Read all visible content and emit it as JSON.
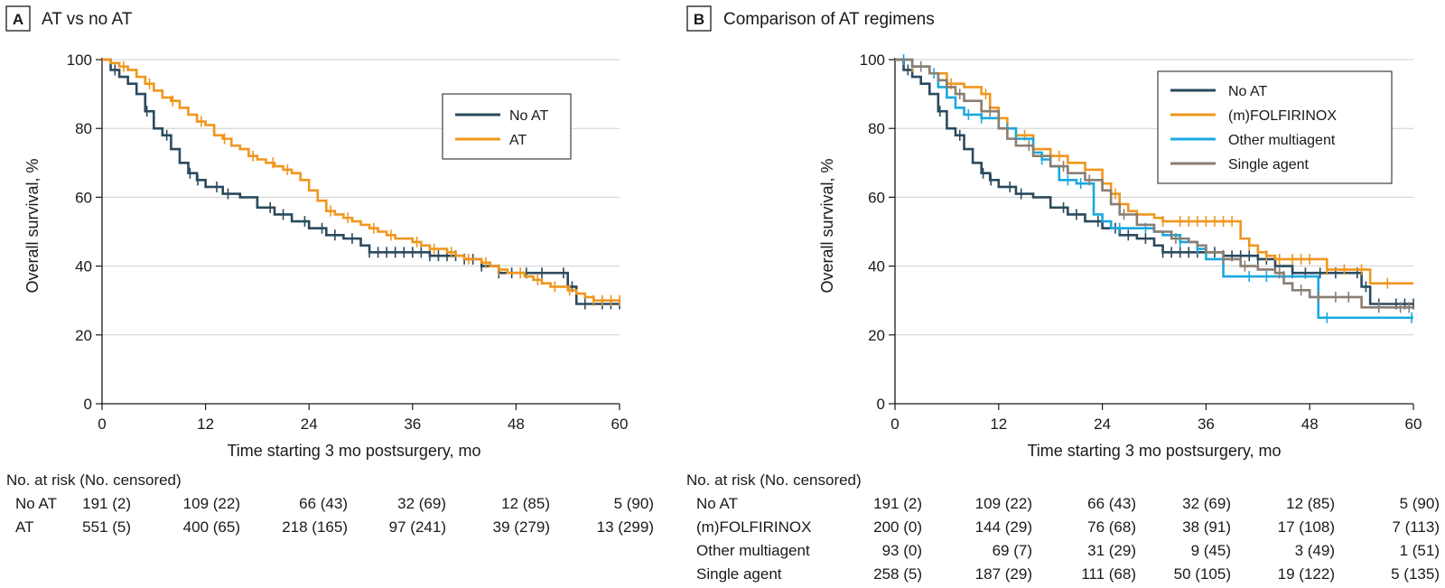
{
  "chart_data": [
    {
      "type": "line",
      "panel_letter": "A",
      "title": "AT vs no AT",
      "xlabel": "Time starting 3 mo postsurgery, mo",
      "ylabel": "Overall survival, %",
      "xlim": [
        0,
        60
      ],
      "ylim": [
        0,
        100
      ],
      "xticks": [
        0,
        12,
        24,
        36,
        48,
        60
      ],
      "yticks": [
        0,
        20,
        40,
        60,
        80,
        100
      ],
      "grid": "horizontal",
      "legend_position": "top-right",
      "series": [
        {
          "name": "No AT",
          "color": "#2b4a5e",
          "x": [
            0,
            1,
            2,
            3,
            4,
            5,
            6,
            7,
            8,
            9,
            10,
            11,
            12,
            14,
            16,
            18,
            20,
            22,
            24,
            26,
            28,
            30,
            31,
            33,
            36,
            38,
            42,
            44,
            46,
            48,
            50,
            53,
            54,
            55,
            60
          ],
          "y": [
            100,
            97,
            95,
            93,
            90,
            85,
            80,
            78,
            74,
            70,
            67,
            65,
            63,
            61,
            60,
            57,
            55,
            53,
            51,
            49,
            48,
            46,
            44,
            44,
            44,
            43,
            42,
            40,
            38,
            38,
            38,
            38,
            34,
            29,
            29
          ],
          "censor_x": [
            1.5,
            5.2,
            7.5,
            10.2,
            11.1,
            13.3,
            14.6,
            19.5,
            21,
            23.5,
            25.5,
            27,
            29,
            31,
            32,
            33,
            34,
            35,
            36,
            37,
            38,
            39,
            40,
            41,
            42,
            43,
            44,
            46,
            47.5,
            49.2,
            51,
            53.5,
            54.5,
            56,
            58,
            59,
            60
          ]
        },
        {
          "name": "AT",
          "color": "#f0961d",
          "x": [
            0,
            1,
            2,
            3,
            4,
            5,
            6,
            7,
            8,
            9,
            10,
            11,
            12,
            13,
            14,
            15,
            16,
            17,
            18,
            19,
            20,
            21,
            22,
            23,
            24,
            25,
            26,
            27,
            28,
            29,
            30,
            31,
            32,
            33,
            34,
            35,
            36,
            37,
            38,
            39,
            40,
            41,
            42,
            43,
            44,
            45,
            46,
            47,
            48,
            49,
            50,
            51,
            52,
            53,
            54,
            55,
            56,
            57,
            58,
            60
          ],
          "y": [
            100,
            99,
            98,
            97,
            95,
            93,
            91,
            89,
            88,
            86,
            84,
            82,
            81,
            78,
            77,
            75,
            74,
            72,
            71,
            70,
            69,
            68,
            67,
            65,
            62,
            59,
            56,
            55,
            54,
            53,
            52,
            51,
            50,
            49,
            48,
            48,
            47,
            46,
            45,
            45,
            44,
            43,
            42,
            42,
            41,
            40,
            39,
            38,
            38,
            37,
            36,
            35,
            34,
            34,
            33,
            32,
            31,
            30,
            30,
            30
          ],
          "censor_x": [
            2.5,
            5.5,
            8.2,
            11.5,
            14.2,
            17.5,
            19.8,
            21.5,
            26.5,
            28.5,
            31.5,
            33.5,
            36.5,
            38.5,
            40.5,
            42.5,
            44.5,
            46,
            48.5,
            50.5,
            52.5,
            54.2,
            57,
            58,
            59,
            60
          ]
        }
      ],
      "risk_table": {
        "header": "No. at risk (No. censored)",
        "rows": [
          {
            "label": "No AT",
            "values": [
              "191 (2)",
              "109 (22)",
              "66 (43)",
              "32 (69)",
              "12 (85)",
              "5 (90)"
            ]
          },
          {
            "label": "AT",
            "values": [
              "551 (5)",
              "400 (65)",
              "218 (165)",
              "97 (241)",
              "39 (279)",
              "13 (299)"
            ]
          }
        ]
      }
    },
    {
      "type": "line",
      "panel_letter": "B",
      "title": "Comparison of AT regimens",
      "xlabel": "Time starting 3 mo postsurgery, mo",
      "ylabel": "Overall survival, %",
      "xlim": [
        0,
        60
      ],
      "ylim": [
        0,
        100
      ],
      "xticks": [
        0,
        12,
        24,
        36,
        48,
        60
      ],
      "yticks": [
        0,
        20,
        40,
        60,
        80,
        100
      ],
      "grid": "horizontal",
      "legend_position": "top-right",
      "series": [
        {
          "name": "No AT",
          "color": "#2b4a5e",
          "x": [
            0,
            1,
            2,
            3,
            4,
            5,
            6,
            7,
            8,
            9,
            10,
            11,
            12,
            14,
            16,
            18,
            20,
            22,
            24,
            26,
            28,
            30,
            31,
            33,
            36,
            38,
            42,
            44,
            46,
            48,
            50,
            53,
            54,
            55,
            60
          ],
          "y": [
            100,
            97,
            95,
            93,
            90,
            85,
            80,
            78,
            74,
            70,
            67,
            65,
            63,
            61,
            60,
            57,
            55,
            53,
            51,
            49,
            48,
            46,
            44,
            44,
            44,
            43,
            42,
            40,
            38,
            38,
            38,
            38,
            34,
            29,
            29
          ],
          "censor_x": [
            1.5,
            5.2,
            7.5,
            10.2,
            11.1,
            13.3,
            14.6,
            19.5,
            21,
            23.5,
            25.5,
            27,
            29,
            31,
            32,
            33,
            34,
            35,
            36,
            37,
            38,
            39,
            40,
            41,
            42,
            43,
            44,
            46,
            47.5,
            49.2,
            51,
            53.5,
            54.5,
            56,
            58,
            59,
            60
          ]
        },
        {
          "name": "(m)FOLFIRINOX",
          "color": "#f0961d",
          "x": [
            0,
            2,
            4,
            6,
            8,
            10,
            11,
            12,
            13,
            14,
            16,
            18,
            20,
            22,
            24,
            25,
            26,
            27,
            28,
            30,
            31,
            32,
            33,
            39,
            40,
            41,
            42,
            43,
            44,
            49,
            50,
            54,
            55,
            60
          ],
          "y": [
            100,
            98,
            96,
            93,
            92,
            90,
            86,
            83,
            80,
            78,
            74,
            72,
            70,
            68,
            64,
            61,
            58,
            56,
            55,
            54,
            53,
            53,
            53,
            53,
            48,
            46,
            44,
            43,
            42,
            42,
            39,
            39,
            35,
            35
          ],
          "censor_x": [
            2,
            6.5,
            10.5,
            15,
            19,
            22,
            25.5,
            31,
            33,
            34,
            35,
            36,
            37,
            38,
            39,
            41,
            43,
            44.5,
            46,
            47,
            48,
            50,
            52,
            54,
            57
          ]
        },
        {
          "name": "Other multiagent",
          "color": "#1aa8e0",
          "x": [
            0,
            2,
            4,
            5,
            6,
            7,
            8,
            10,
            12,
            14,
            16,
            17,
            18,
            19,
            21,
            23,
            24,
            25,
            28,
            30,
            31,
            33,
            35,
            36,
            38,
            40,
            42,
            44,
            46,
            49,
            50,
            60
          ],
          "y": [
            100,
            98,
            96,
            92,
            89,
            86,
            84,
            83,
            80,
            77,
            73,
            71,
            69,
            65,
            64,
            55,
            53,
            51,
            51,
            50,
            49,
            47,
            45,
            42,
            37,
            37,
            37,
            37,
            37,
            25,
            25,
            25
          ],
          "censor_x": [
            1,
            4.5,
            8.5,
            10,
            13,
            17,
            20,
            21.5,
            26,
            29,
            33,
            35,
            41,
            43,
            45,
            50,
            59.8
          ]
        },
        {
          "name": "Single agent",
          "color": "#8a7d72",
          "x": [
            0,
            2,
            4,
            5,
            6,
            7,
            8,
            10,
            12,
            13,
            14,
            16,
            18,
            20,
            22,
            24,
            25,
            26,
            28,
            30,
            32,
            34,
            35,
            36,
            38,
            40,
            42,
            44,
            45,
            46,
            48,
            52,
            54,
            55,
            60
          ],
          "y": [
            100,
            98,
            96,
            94,
            92,
            90,
            88,
            85,
            80,
            77,
            75,
            72,
            69,
            67,
            65,
            62,
            58,
            55,
            52,
            50,
            48,
            47,
            46,
            44,
            42,
            40,
            39,
            38,
            35,
            33,
            31,
            31,
            28,
            28,
            28
          ],
          "censor_x": [
            3,
            7.5,
            11,
            15.5,
            19.5,
            22.5,
            26.5,
            32.5,
            38,
            40.5,
            44.5,
            47,
            49,
            51,
            52.5,
            56,
            58.5,
            59.5
          ]
        }
      ],
      "risk_table": {
        "header": "No. at risk (No. censored)",
        "rows": [
          {
            "label": "No AT",
            "values": [
              "191 (2)",
              "109 (22)",
              "66 (43)",
              "32 (69)",
              "12 (85)",
              "5 (90)"
            ]
          },
          {
            "label": "(m)FOLFIRINOX",
            "values": [
              "200 (0)",
              "144 (29)",
              "76 (68)",
              "38 (91)",
              "17 (108)",
              "7 (113)"
            ]
          },
          {
            "label": "Other multiagent",
            "values": [
              "93 (0)",
              "69 (7)",
              "31 (29)",
              "9 (45)",
              "3 (49)",
              "1 (51)"
            ]
          },
          {
            "label": "Single agent",
            "values": [
              "258 (5)",
              "187 (29)",
              "111 (68)",
              "50 (105)",
              "19 (122)",
              "5 (135)"
            ]
          }
        ]
      }
    }
  ]
}
